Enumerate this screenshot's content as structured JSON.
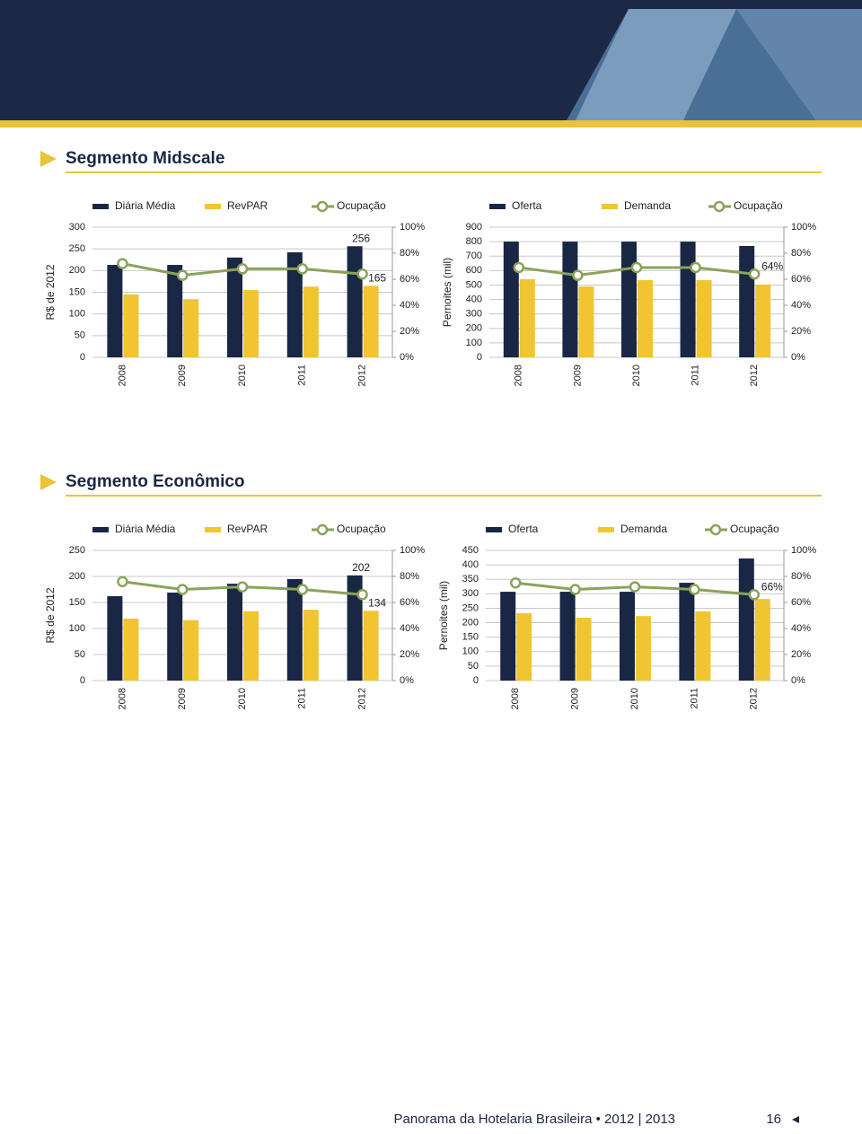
{
  "sections": [
    {
      "title": "Segmento Midscale"
    },
    {
      "title": "Segmento Econômico"
    }
  ],
  "footer": {
    "title": "Panorama da Hotelaria Brasileira • 2012 | 2013",
    "page": "16"
  },
  "chart_data": [
    {
      "type": "combo",
      "y_label": "R$ de 2012",
      "categories": [
        "2008",
        "2009",
        "2010",
        "2011",
        "2012"
      ],
      "ylim": [
        0,
        300
      ],
      "yticks": [
        0,
        50,
        100,
        150,
        200,
        250,
        300
      ],
      "y2lim": [
        0,
        100
      ],
      "y2ticks": [
        {
          "value": 0,
          "label": "0%"
        },
        {
          "value": 20,
          "label": "20%"
        },
        {
          "value": 40,
          "label": "40%"
        },
        {
          "value": 60,
          "label": "60%"
        },
        {
          "value": 80,
          "label": "80%"
        },
        {
          "value": 100,
          "label": "100%"
        }
      ],
      "grid": true,
      "series": [
        {
          "name": "Diária Média",
          "kind": "bar",
          "color": "#1a2744",
          "values": [
            213,
            213,
            230,
            242,
            256
          ],
          "show_last_label": true
        },
        {
          "name": "RevPAR",
          "kind": "bar",
          "color": "#f0c531",
          "values": [
            145,
            134,
            155,
            163,
            165
          ],
          "show_last_label": true
        },
        {
          "name": "Ocupação",
          "kind": "line",
          "axis": "y2",
          "color": "#8aa35a",
          "values": [
            72,
            63,
            68,
            68,
            64
          ]
        }
      ]
    },
    {
      "type": "combo",
      "y_label": "Pernoites (mil)",
      "categories": [
        "2008",
        "2009",
        "2010",
        "2011",
        "2012"
      ],
      "ylim": [
        0,
        900
      ],
      "yticks": [
        0,
        100,
        200,
        300,
        400,
        500,
        600,
        700,
        800,
        900
      ],
      "y2lim": [
        0,
        100
      ],
      "y2ticks": [
        {
          "value": 0,
          "label": "0%"
        },
        {
          "value": 20,
          "label": "20%"
        },
        {
          "value": 40,
          "label": "40%"
        },
        {
          "value": 60,
          "label": "60%"
        },
        {
          "value": 80,
          "label": "80%"
        },
        {
          "value": 100,
          "label": "100%"
        }
      ],
      "grid": true,
      "series": [
        {
          "name": "Oferta",
          "kind": "bar",
          "color": "#1a2744",
          "values": [
            800,
            800,
            800,
            800,
            770
          ]
        },
        {
          "name": "Demanda",
          "kind": "bar",
          "color": "#f0c531",
          "values": [
            540,
            490,
            534,
            534,
            503
          ]
        },
        {
          "name": "Ocupação",
          "kind": "line",
          "axis": "y2",
          "color": "#8aa35a",
          "values": [
            69,
            63,
            69,
            69,
            64
          ],
          "value_labels": [
            null,
            null,
            null,
            null,
            "64%"
          ],
          "show_last_label": true
        }
      ]
    },
    {
      "type": "combo",
      "y_label": "R$ de 2012",
      "categories": [
        "2008",
        "2009",
        "2010",
        "2011",
        "2012"
      ],
      "ylim": [
        0,
        250
      ],
      "yticks": [
        0,
        50,
        100,
        150,
        200,
        250
      ],
      "y2lim": [
        0,
        100
      ],
      "y2ticks": [
        {
          "value": 0,
          "label": "0%"
        },
        {
          "value": 20,
          "label": "20%"
        },
        {
          "value": 40,
          "label": "40%"
        },
        {
          "value": 60,
          "label": "60%"
        },
        {
          "value": 80,
          "label": "80%"
        },
        {
          "value": 100,
          "label": "100%"
        }
      ],
      "grid": true,
      "series": [
        {
          "name": "Diária Média",
          "kind": "bar",
          "color": "#1a2744",
          "values": [
            162,
            169,
            186,
            195,
            202
          ],
          "show_last_label": true
        },
        {
          "name": "RevPAR",
          "kind": "bar",
          "color": "#f0c531",
          "values": [
            119,
            116,
            133,
            136,
            134
          ],
          "show_last_label": true
        },
        {
          "name": "Ocupação",
          "kind": "line",
          "axis": "y2",
          "color": "#8aa35a",
          "values": [
            76,
            70,
            72,
            70,
            66
          ]
        }
      ]
    },
    {
      "type": "combo",
      "y_label": "Pernoites (mil)",
      "categories": [
        "2008",
        "2009",
        "2010",
        "2011",
        "2012"
      ],
      "ylim": [
        0,
        450
      ],
      "yticks": [
        0,
        50,
        100,
        150,
        200,
        250,
        300,
        350,
        400,
        450
      ],
      "y2lim": [
        0,
        100
      ],
      "y2ticks": [
        {
          "value": 0,
          "label": "0%"
        },
        {
          "value": 20,
          "label": "20%"
        },
        {
          "value": 40,
          "label": "40%"
        },
        {
          "value": 60,
          "label": "60%"
        },
        {
          "value": 80,
          "label": "80%"
        },
        {
          "value": 100,
          "label": "100%"
        }
      ],
      "grid": true,
      "series": [
        {
          "name": "Oferta",
          "kind": "bar",
          "color": "#1a2744",
          "values": [
            307,
            307,
            307,
            338,
            422
          ]
        },
        {
          "name": "Demanda",
          "kind": "bar",
          "color": "#f0c531",
          "values": [
            233,
            217,
            223,
            239,
            282
          ]
        },
        {
          "name": "Ocupação",
          "kind": "line",
          "axis": "y2",
          "color": "#8aa35a",
          "values": [
            75,
            70,
            72,
            70,
            66
          ],
          "value_labels": [
            null,
            null,
            null,
            null,
            "66%"
          ],
          "show_last_label": true
        }
      ]
    }
  ]
}
